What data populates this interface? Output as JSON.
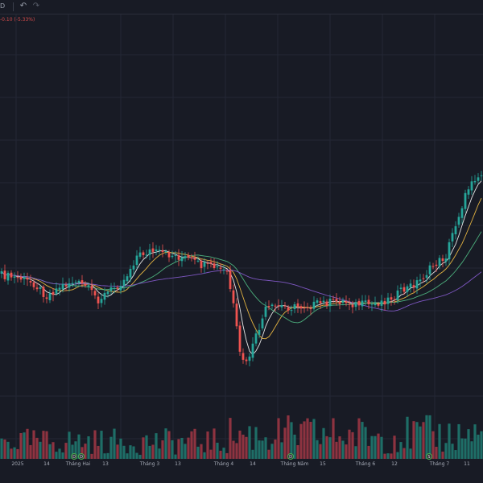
{
  "toolbar": {
    "interval_label": "D",
    "undo_icon": "undo-icon",
    "redo_icon": "redo-icon"
  },
  "legend": {
    "change_text": "-0.10 (-5.33%)",
    "color_down": "#d04a4a"
  },
  "colors": {
    "background": "#181b25",
    "grid": "#232735",
    "up": "#26a69a",
    "down": "#ef5350",
    "vol_up": "#1e6e67",
    "vol_down": "#8e3340",
    "ma_fast": "#e8e8e8",
    "ma_mid": "#e3b341",
    "ma_slow": "#4caf7d",
    "ma_long": "#7e57c2"
  },
  "chart_data": {
    "type": "candlestick",
    "x_tick_labels": [
      "2025",
      "14",
      "Tháng Hai",
      "13",
      "Tháng 3",
      "13",
      "Tháng 4",
      "14",
      "Tháng Năm",
      "15",
      "Tháng 6",
      "12",
      "Tháng 7",
      "11"
    ],
    "event_markers": [
      "D",
      "D",
      "D",
      "S"
    ],
    "moving_averages": [
      "ma_fast",
      "ma_mid",
      "ma_slow",
      "ma_long"
    ],
    "grid": true,
    "legend_position": "top-left"
  }
}
